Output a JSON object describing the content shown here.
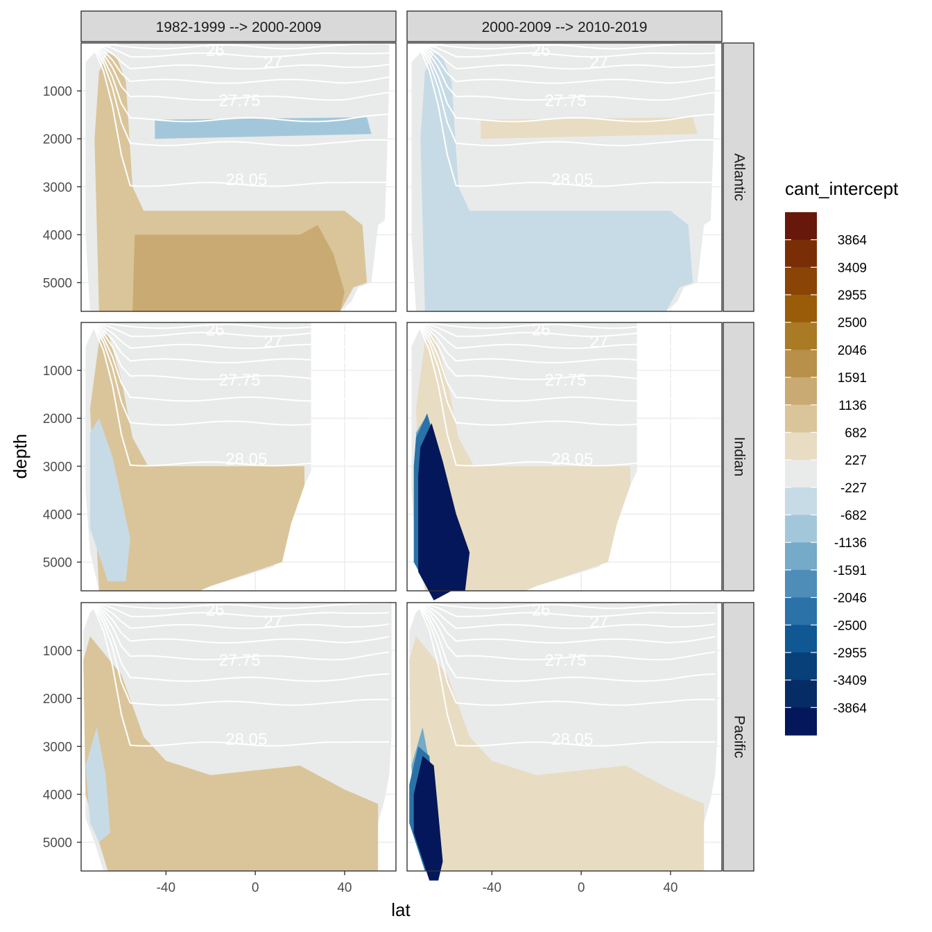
{
  "chart_data": {
    "type": "contour",
    "title": "",
    "xlabel": "lat",
    "ylabel": "depth",
    "xlim": [
      -78,
      63
    ],
    "ylim": [
      5600,
      0
    ],
    "x_ticks": [
      -40,
      0,
      40
    ],
    "y_ticks": [
      1000,
      2000,
      3000,
      4000,
      5000
    ],
    "x_tick_labels": [
      "-40",
      "0",
      "40"
    ],
    "y_tick_labels": [
      "1000",
      "2000",
      "3000",
      "4000",
      "5000"
    ],
    "facet_columns": [
      "1982-1999 --> 2000-2009",
      "2000-2009 --> 2010-2019"
    ],
    "facet_rows": [
      "Atlantic",
      "Indian",
      "Pacific"
    ],
    "isopycnal_labels": [
      {
        "label": "26",
        "lat": -18,
        "depth": 150
      },
      {
        "label": "27",
        "lat": 8,
        "depth": 400
      },
      {
        "label": "27.75",
        "lat": -7,
        "depth": 1200
      },
      {
        "label": "28.05",
        "lat": -4,
        "depth": 2850
      }
    ],
    "legend": {
      "title": "cant_intercept",
      "labels": [
        "3864",
        "3409",
        "2955",
        "2500",
        "2046",
        "1591",
        "1136",
        "682",
        "227",
        "-227",
        "-682",
        "-1136",
        "-1591",
        "-2046",
        "-2500",
        "-2955",
        "-3409",
        "-3864"
      ],
      "colors": [
        "#67180a",
        "#7a2e05",
        "#8a4405",
        "#9a5c08",
        "#aa7a24",
        "#b8904a",
        "#c9aa72",
        "#dac59a",
        "#e8dcc3",
        "#e9ebea",
        "#c7dbe6",
        "#a3c7da",
        "#75aac8",
        "#4d8db8",
        "#2a72a7",
        "#0f5894",
        "#08407a",
        "#062c66",
        "#03175a"
      ]
    }
  }
}
